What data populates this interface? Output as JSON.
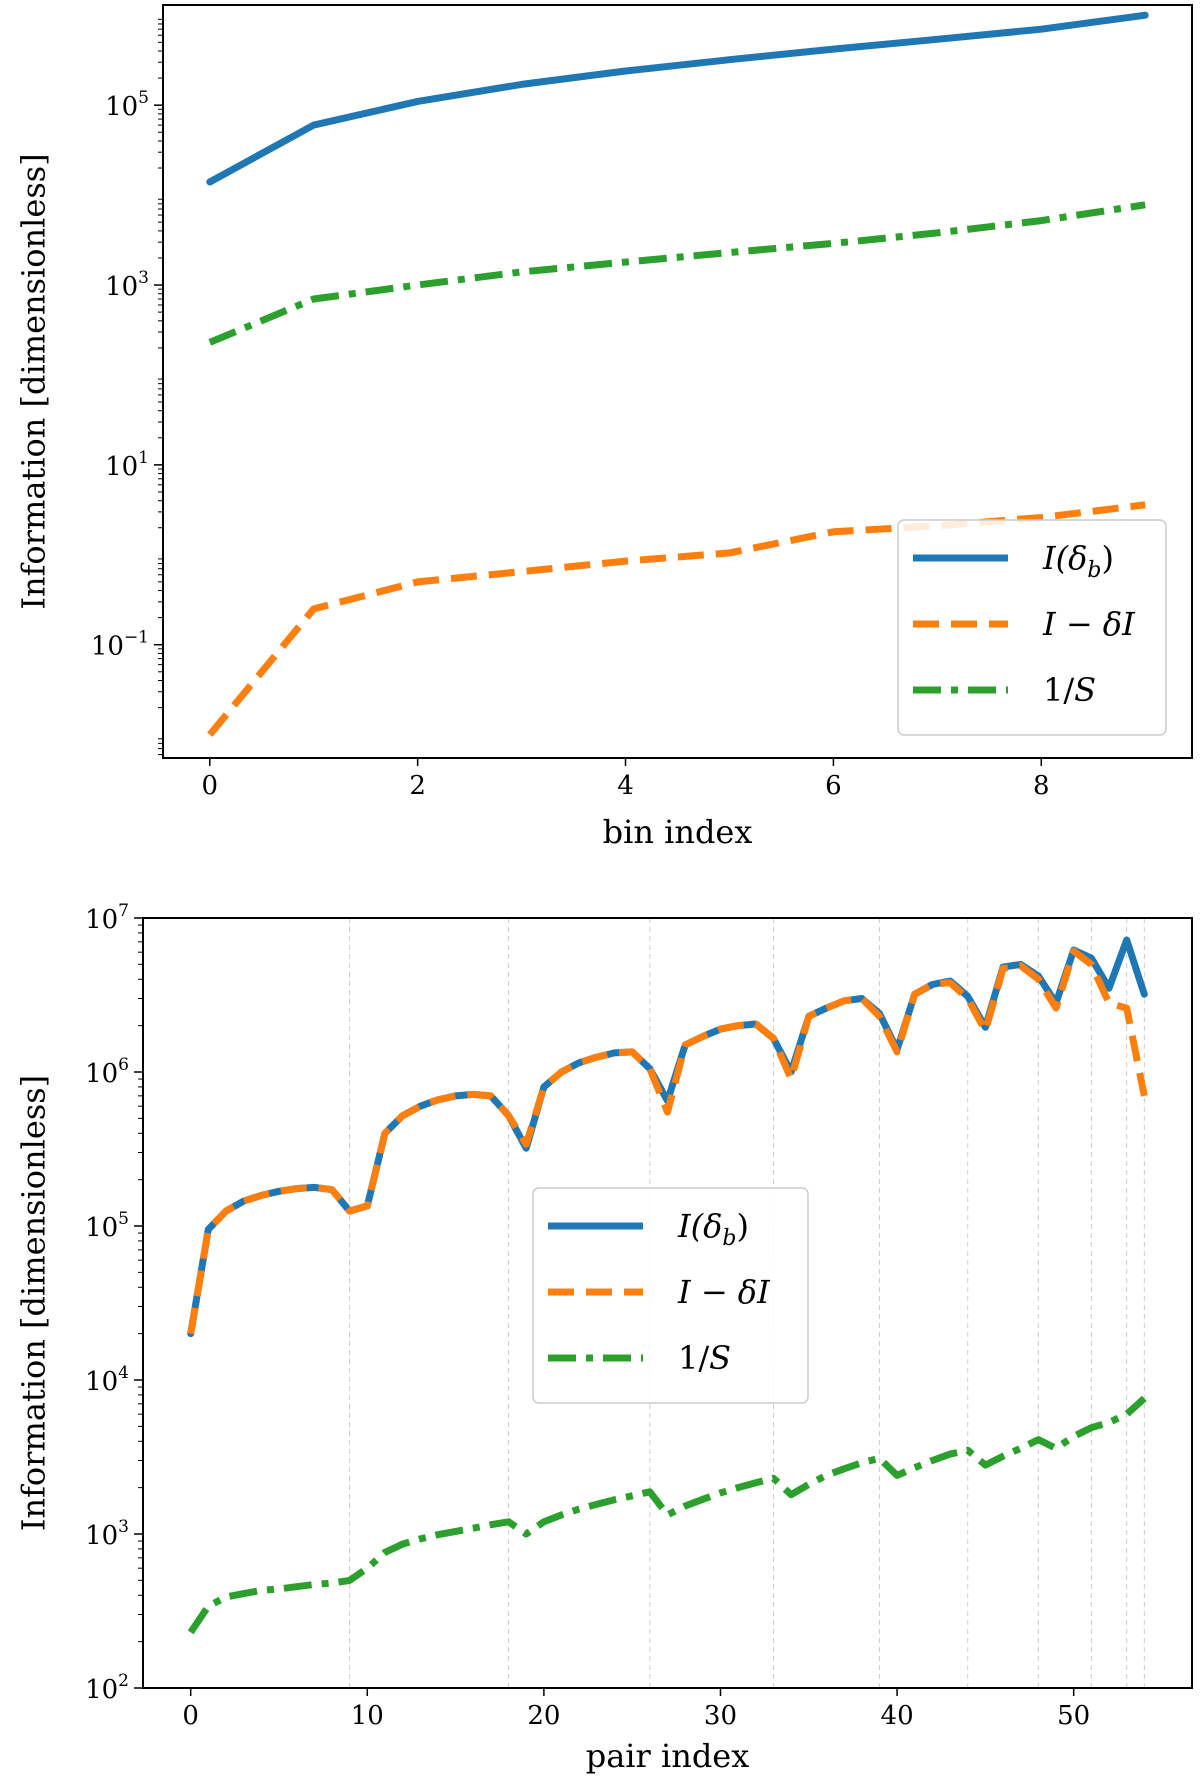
{
  "chart_data": [
    {
      "type": "line",
      "yscale": "log",
      "title": "",
      "xlabel": "bin index",
      "ylabel": "Information [dimensionless]",
      "xlim": [
        -0.45,
        9.45
      ],
      "ylim": [
        0.0055,
        1300000
      ],
      "xticks": [
        0,
        2,
        4,
        6,
        8
      ],
      "xtick_labels": [
        "0",
        "2",
        "4",
        "6",
        "8"
      ],
      "yticks": [
        0.1,
        10,
        1000,
        100000
      ],
      "ytick_labels": [
        {
          "base": "10",
          "exp": "−1"
        },
        {
          "base": "10",
          "exp": "1"
        },
        {
          "base": "10",
          "exp": "3"
        },
        {
          "base": "10",
          "exp": "5"
        }
      ],
      "grid": false,
      "legend_position": "lower right",
      "x": [
        0,
        1,
        2,
        3,
        4,
        5,
        6,
        7,
        8,
        9
      ],
      "series": [
        {
          "name": "I(δ_b)",
          "label_main": "I(δ",
          "label_sub": "b",
          "label_tail": ")",
          "color": "#1f77b4",
          "style": "solid",
          "values": [
            14000,
            60000,
            110000,
            170000,
            240000,
            320000,
            420000,
            540000,
            700000,
            1000000
          ]
        },
        {
          "name": "I − δI",
          "label_main": "I − δI",
          "color": "#ff7f0e",
          "style": "dashed",
          "values": [
            0.01,
            0.25,
            0.5,
            0.65,
            0.85,
            1.05,
            1.8,
            2.1,
            2.6,
            3.6
          ]
        },
        {
          "name": "1/S",
          "label_main": "1/",
          "label_tail": "S",
          "color": "#2ca02c",
          "style": "dashdot",
          "values": [
            230,
            700,
            1000,
            1400,
            1800,
            2300,
            2900,
            3800,
            5200,
            7800
          ]
        }
      ]
    },
    {
      "type": "line",
      "yscale": "log",
      "title": "",
      "xlabel": "pair index",
      "ylabel": "Information [dimensionless]",
      "xlim": [
        -2.7,
        56.7
      ],
      "ylim": [
        100,
        10000000
      ],
      "xticks": [
        0,
        10,
        20,
        30,
        40,
        50
      ],
      "xtick_labels": [
        "0",
        "10",
        "20",
        "30",
        "40",
        "50"
      ],
      "yticks": [
        100,
        1000,
        10000,
        100000,
        1000000,
        10000000
      ],
      "ytick_labels": [
        {
          "base": "10",
          "exp": "2"
        },
        {
          "base": "10",
          "exp": "3"
        },
        {
          "base": "10",
          "exp": "4"
        },
        {
          "base": "10",
          "exp": "5"
        },
        {
          "base": "10",
          "exp": "6"
        },
        {
          "base": "10",
          "exp": "7"
        }
      ],
      "vertical_gridlines_at": [
        9,
        18,
        26,
        33,
        39,
        44,
        48,
        51,
        53,
        54
      ],
      "legend_position": "center",
      "x": [
        0,
        1,
        2,
        3,
        4,
        5,
        6,
        7,
        8,
        9,
        10,
        11,
        12,
        13,
        14,
        15,
        16,
        17,
        18,
        19,
        20,
        21,
        22,
        23,
        24,
        25,
        26,
        27,
        28,
        29,
        30,
        31,
        32,
        33,
        34,
        35,
        36,
        37,
        38,
        39,
        40,
        41,
        42,
        43,
        44,
        45,
        46,
        47,
        48,
        49,
        50,
        51,
        52,
        53,
        54
      ],
      "series": [
        {
          "name": "I(δ_b)",
          "label_main": "I(δ",
          "label_sub": "b",
          "label_tail": ")",
          "color": "#1f77b4",
          "style": "solid",
          "values": [
            20000,
            95000,
            125000,
            145000,
            158000,
            168000,
            175000,
            178000,
            172000,
            125000,
            135000,
            400000,
            520000,
            600000,
            660000,
            700000,
            715000,
            700000,
            520000,
            320000,
            800000,
            1000000,
            1150000,
            1250000,
            1330000,
            1350000,
            1050000,
            650000,
            1500000,
            1700000,
            1900000,
            2000000,
            2050000,
            1650000,
            1000000,
            2300000,
            2600000,
            2900000,
            3000000,
            2400000,
            1400000,
            3200000,
            3700000,
            3900000,
            3100000,
            1950000,
            4800000,
            5000000,
            4200000,
            2800000,
            6200000,
            5500000,
            3500000,
            7200000,
            3200000
          ]
        },
        {
          "name": "I − δI",
          "label_main": "I − δI",
          "color": "#ff7f0e",
          "style": "dashed",
          "values": [
            20000,
            95000,
            125000,
            145000,
            158000,
            168000,
            175000,
            178000,
            172000,
            125000,
            135000,
            400000,
            520000,
            600000,
            660000,
            700000,
            715000,
            700000,
            520000,
            340000,
            800000,
            1000000,
            1150000,
            1250000,
            1330000,
            1350000,
            1050000,
            550000,
            1500000,
            1700000,
            1900000,
            2000000,
            2050000,
            1650000,
            900000,
            2300000,
            2600000,
            2900000,
            3000000,
            2300000,
            1350000,
            3200000,
            3700000,
            3800000,
            3000000,
            1850000,
            4700000,
            4900000,
            4000000,
            2600000,
            6100000,
            5000000,
            2800000,
            2600000,
            700000
          ]
        },
        {
          "name": "1/S",
          "label_main": "1/",
          "label_tail": "S",
          "color": "#2ca02c",
          "style": "dashdot",
          "values": [
            230,
            340,
            390,
            410,
            430,
            440,
            455,
            470,
            480,
            500,
            600,
            760,
            860,
            930,
            990,
            1040,
            1090,
            1150,
            1200,
            1000,
            1200,
            1330,
            1450,
            1560,
            1670,
            1770,
            1880,
            1330,
            1520,
            1680,
            1850,
            2000,
            2150,
            2300,
            1800,
            2100,
            2400,
            2650,
            2900,
            3100,
            2400,
            2700,
            3000,
            3300,
            3500,
            2800,
            3200,
            3600,
            4100,
            3600,
            4300,
            4900,
            5300,
            6000,
            7600
          ]
        }
      ]
    }
  ]
}
